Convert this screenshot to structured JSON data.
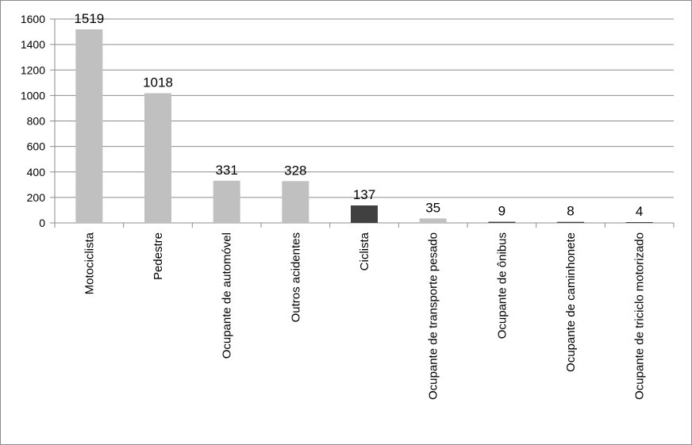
{
  "chart_data": {
    "type": "bar",
    "title": "",
    "xlabel": "",
    "ylabel": "",
    "categories": [
      "Motociclista",
      "Pedestre",
      "Ocupante de automóvel",
      "Outros acidentes",
      "Ciclista",
      "Ocupante de transporte pesado",
      "Ocupante de ônibus",
      "Ocupante de caminhonete",
      "Ocupante de triciclo motorizado"
    ],
    "values": [
      1519,
      1018,
      331,
      328,
      137,
      35,
      9,
      8,
      4
    ],
    "data_labels": [
      "1519",
      "1018",
      "331",
      "328",
      "137",
      "35",
      "9",
      "8",
      "4"
    ],
    "bar_colors": [
      "#c0c0c0",
      "#c0c0c0",
      "#c0c0c0",
      "#c0c0c0",
      "#404040",
      "#c0c0c0",
      "#404040",
      "#404040",
      "#404040"
    ],
    "ylim": [
      0,
      1600
    ],
    "yticks": [
      0,
      200,
      400,
      600,
      800,
      1000,
      1200,
      1400,
      1600
    ],
    "grid": true,
    "legend": "none"
  }
}
